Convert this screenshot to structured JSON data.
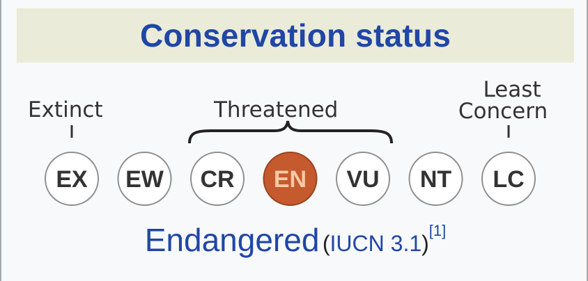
{
  "header": {
    "title": "Conservation status"
  },
  "scale": {
    "label_extinct": "Extinct",
    "label_threatened": "Threatened",
    "label_least_line1": "Least",
    "label_least_line2": "Concern",
    "categories": [
      {
        "code": "EX",
        "selected": false
      },
      {
        "code": "EW",
        "selected": false
      },
      {
        "code": "CR",
        "selected": false
      },
      {
        "code": "EN",
        "selected": true
      },
      {
        "code": "VU",
        "selected": false
      },
      {
        "code": "NT",
        "selected": false
      },
      {
        "code": "LC",
        "selected": false
      }
    ]
  },
  "status": {
    "name": "Endangered",
    "open_paren": "(",
    "source_link": "IUCN 3.1",
    "close_paren": ")",
    "ref": "[1]"
  },
  "colors": {
    "title": "#2046a6",
    "header_bg": "#eaecd9",
    "selected_fill": "#c55a2e",
    "selected_text": "#f6c9a4",
    "circle_text": "#333333"
  }
}
